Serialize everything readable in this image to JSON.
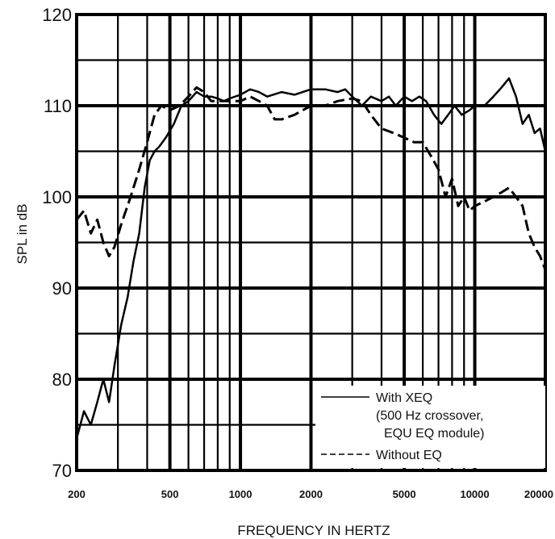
{
  "chart_data": {
    "type": "line",
    "xlabel": "FREQUENCY IN HERTZ",
    "ylabel": "SPL in dB",
    "x_scale": "log",
    "xlim": [
      200,
      20000
    ],
    "ylim": [
      70,
      120
    ],
    "grid": true,
    "x_ticks": [
      200,
      500,
      1000,
      2000,
      5000,
      10000,
      20000
    ],
    "x_tick_labels": [
      "200",
      "500",
      "1000",
      "2000",
      "5000",
      "10000",
      "20000"
    ],
    "y_ticks": [
      70,
      80,
      90,
      100,
      110,
      120
    ],
    "y_tick_labels": [
      "70",
      "80",
      "90",
      "100",
      "110",
      "120"
    ],
    "legend": {
      "placement": "bottom-right",
      "entries": [
        {
          "series": 0,
          "lines": [
            "With XEQ",
            "(500 Hz crossover,",
            "EQU EQ module)"
          ]
        },
        {
          "series": 1,
          "lines": [
            "Without EQ"
          ]
        }
      ]
    },
    "series": [
      {
        "name": "With XEQ (500 Hz crossover, EQU EQ module)",
        "style": "solid",
        "x": [
          200,
          215,
          230,
          245,
          260,
          275,
          290,
          310,
          330,
          350,
          370,
          390,
          410,
          430,
          450,
          480,
          520,
          560,
          600,
          650,
          700,
          750,
          800,
          850,
          900,
          1000,
          1100,
          1200,
          1300,
          1500,
          1700,
          2000,
          2300,
          2600,
          2800,
          3000,
          3300,
          3600,
          4000,
          4300,
          4600,
          5000,
          5400,
          5800,
          6200,
          6700,
          7200,
          7700,
          8200,
          8800,
          9500,
          10000,
          11000,
          12000,
          13000,
          14000,
          15000,
          16000,
          17000,
          18000,
          19000,
          20000
        ],
        "y": [
          73.5,
          76.5,
          75,
          77.5,
          80,
          77.5,
          81.5,
          86,
          89,
          93,
          96,
          101,
          104,
          105,
          105.5,
          106.5,
          108,
          110,
          110.5,
          111.5,
          111,
          111,
          110.8,
          110.5,
          110.8,
          111.2,
          111.8,
          111.5,
          111,
          111.5,
          111.2,
          111.8,
          111.8,
          111.5,
          111.8,
          111,
          110,
          111,
          110.5,
          111,
          110,
          111,
          110.5,
          111,
          110.5,
          109,
          108,
          109,
          110,
          109,
          109.5,
          110,
          110,
          111,
          112,
          113,
          111,
          108,
          109,
          107,
          107.5,
          105
        ]
      },
      {
        "name": "Without EQ",
        "style": "dashed",
        "x": [
          200,
          215,
          230,
          245,
          260,
          275,
          290,
          310,
          340,
          370,
          400,
          430,
          460,
          500,
          550,
          600,
          650,
          700,
          750,
          800,
          900,
          1000,
          1100,
          1200,
          1300,
          1400,
          1500,
          1700,
          2000,
          2300,
          2600,
          3000,
          3300,
          3600,
          4000,
          4500,
          5000,
          5500,
          6000,
          6500,
          7000,
          7500,
          8000,
          8500,
          9000,
          9500,
          10000,
          11000,
          12000,
          13000,
          14000,
          15000,
          16000,
          17000,
          18000,
          19000,
          20000
        ],
        "y": [
          97.5,
          98.5,
          96,
          97.5,
          95,
          93.5,
          94.5,
          97,
          100,
          103,
          106,
          109,
          110,
          109.5,
          110,
          111,
          112,
          111.5,
          110.5,
          110.5,
          110.5,
          110.5,
          111,
          110.5,
          110,
          108.5,
          108.5,
          109,
          110,
          110,
          110.5,
          110.8,
          110.5,
          109,
          107.5,
          107,
          106.5,
          106,
          106,
          104.5,
          103,
          100,
          102,
          99,
          100,
          98.5,
          99,
          99.5,
          100,
          100.5,
          101,
          100,
          99,
          96,
          94.5,
          93.5,
          92
        ]
      }
    ]
  }
}
